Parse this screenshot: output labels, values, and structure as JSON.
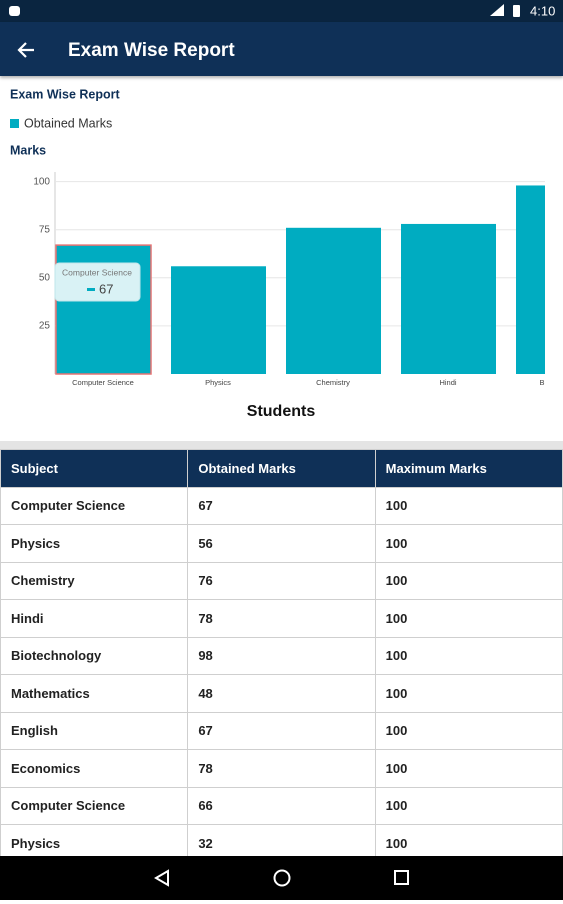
{
  "status_bar": {
    "time": "4:10"
  },
  "app_bar": {
    "title": "Exam Wise Report"
  },
  "chart_data": {
    "type": "bar",
    "title": "Exam Wise Report",
    "y_label": "Marks",
    "x_label": "Students",
    "categories": [
      "Computer Science",
      "Physics",
      "Chemistry",
      "Hindi",
      "Biotechnology"
    ],
    "series": [
      {
        "name": "Obtained Marks",
        "color": "#00acc1",
        "values": [
          67,
          56,
          76,
          78,
          98
        ]
      }
    ],
    "ylim": [
      0,
      105
    ],
    "yticks": [
      25,
      50,
      75,
      100
    ],
    "grid": true
  },
  "table": {
    "columns": [
      "Subject",
      "Obtained Marks",
      "Maximum Marks"
    ],
    "rows": [
      [
        "Computer Science",
        67,
        100
      ],
      [
        "Physics",
        56,
        100
      ],
      [
        "Chemistry",
        76,
        100
      ],
      [
        "Hindi",
        78,
        100
      ],
      [
        "Biotechnology",
        98,
        100
      ],
      [
        "Mathematics",
        48,
        100
      ],
      [
        "English",
        67,
        100
      ],
      [
        "Economics",
        78,
        100
      ],
      [
        "Computer Science",
        66,
        100
      ],
      [
        "Physics",
        32,
        100
      ]
    ]
  }
}
